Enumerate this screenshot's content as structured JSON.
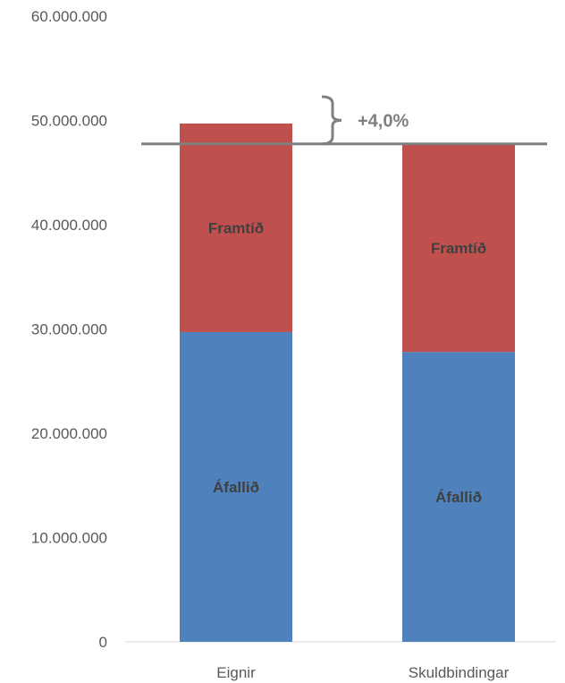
{
  "colors": {
    "series_afallid": "#4f81bd",
    "series_framtid": "#c0504d",
    "reference_line": "#7f7f7f",
    "axis_text": "#595959"
  },
  "chart_data": {
    "type": "bar",
    "stacked": true,
    "categories": [
      "Eignir",
      "Skuldbindingar"
    ],
    "series": [
      {
        "name": "Áfallið",
        "values": [
          29700000,
          27800000
        ]
      },
      {
        "name": "Framtíð",
        "values": [
          20000000,
          19950000
        ]
      }
    ],
    "segment_labels": [
      "Áfallið",
      "Framtíð"
    ],
    "ylim": [
      0,
      60000000
    ],
    "y_ticks": [
      0,
      10000000,
      20000000,
      30000000,
      40000000,
      50000000,
      60000000
    ],
    "y_tick_labels": [
      "0",
      "10.000.000",
      "20.000.000",
      "30.000.000",
      "40.000.000",
      "50.000.000",
      "60.000.000"
    ],
    "reference_line": 47750000,
    "annotation": "+4,0%",
    "grid": false,
    "legend": "none"
  }
}
